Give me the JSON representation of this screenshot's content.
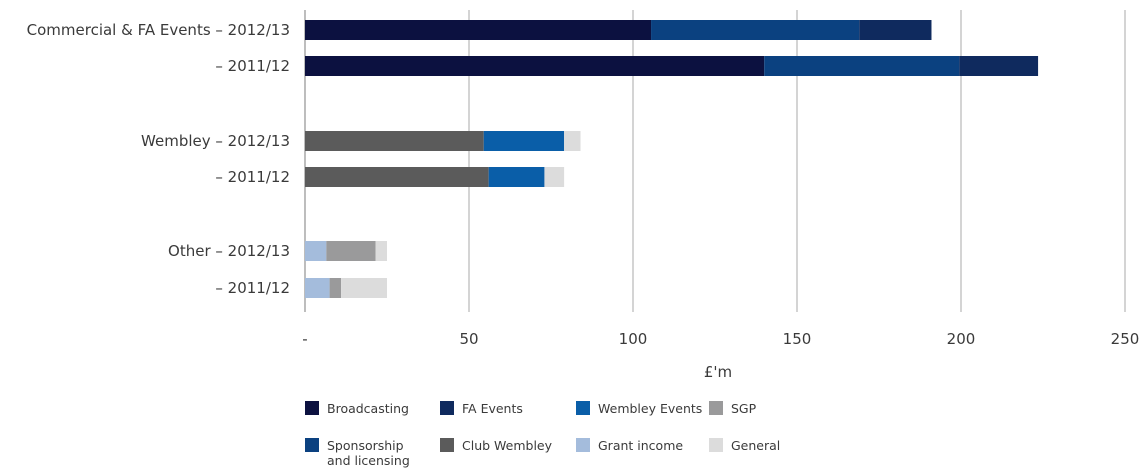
{
  "chart_data": {
    "type": "bar",
    "orientation": "horizontal",
    "stacked": true,
    "xlabel": "£'m",
    "xlim": [
      0,
      250
    ],
    "x_ticks": [
      "-",
      "50",
      "100",
      "150",
      "200",
      "250"
    ],
    "grid": true,
    "legend_position": "bottom",
    "categories": [
      "Commercial & FA Events – 2012/13",
      "– 2011/12",
      "Wembley – 2012/13",
      "– 2011/12",
      "Other – 2012/13",
      "– 2011/12"
    ],
    "series": [
      {
        "name": "Broadcasting",
        "color": "#0c1140",
        "values": [
          105.5,
          140,
          0,
          0,
          0,
          0
        ]
      },
      {
        "name": "Sponsorship and licensing",
        "color": "#0b4180",
        "values": [
          63.5,
          59.5,
          0,
          0,
          0,
          0
        ]
      },
      {
        "name": "FA Events",
        "color": "#0f2a5e",
        "values": [
          22,
          24,
          0,
          0,
          0,
          0
        ]
      },
      {
        "name": "Club Wembley",
        "color": "#5b5b5b",
        "values": [
          0,
          0,
          54.5,
          56,
          0,
          0
        ]
      },
      {
        "name": "Wembley Events",
        "color": "#0a5ea8",
        "values": [
          0,
          0,
          24.5,
          17,
          0,
          0
        ]
      },
      {
        "name": "Grant income",
        "color": "#a4bcdc",
        "values": [
          0,
          0,
          0,
          0,
          6.5,
          7.5
        ]
      },
      {
        "name": "SGP",
        "color": "#9a9a9b",
        "values": [
          0,
          0,
          0,
          0,
          15,
          3.5
        ]
      },
      {
        "name": "General",
        "color": "#dcdcdc",
        "values": [
          0,
          0,
          5,
          6,
          3.5,
          14
        ]
      }
    ]
  },
  "legend": [
    {
      "label": "Broadcasting",
      "color": "#0c1140"
    },
    {
      "label": "FA Events",
      "color": "#0f2a5e"
    },
    {
      "label": "Wembley Events",
      "color": "#0a5ea8"
    },
    {
      "label": "SGP",
      "color": "#9a9a9b"
    },
    {
      "label": "Sponsorship",
      "label2": "and licensing",
      "color": "#0b4180"
    },
    {
      "label": "Club Wembley",
      "color": "#5b5b5b"
    },
    {
      "label": "Grant income",
      "color": "#a4bcdc"
    },
    {
      "label": "General",
      "color": "#dcdcdc"
    }
  ]
}
